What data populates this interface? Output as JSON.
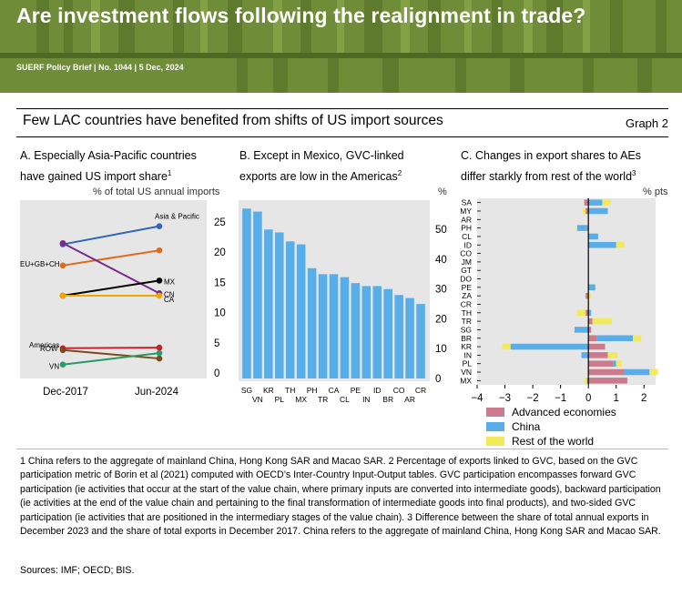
{
  "header": {
    "title": "Are investment flows following the realignment in trade?",
    "subtitle": "SUERF Policy Brief | No. 1044 | 5 Dec, 2024"
  },
  "graph": {
    "title": "Few LAC countries have benefited from shifts of US import sources",
    "number": "Graph 2"
  },
  "panelA": {
    "title_line1": "A. Especially Asia-Pacific countries",
    "title_line2": "have gained US import share",
    "title_sup": "1",
    "unit": "% of total US annual imports"
  },
  "panelB": {
    "title_line1": "B. Except in Mexico, GVC-linked",
    "title_line2": "exports are low in the Americas",
    "title_sup": "2",
    "unit": "%"
  },
  "panelC": {
    "title_line1": "C. Changes in export shares to AEs",
    "title_line2": "differ starkly from rest of the world",
    "title_sup": "3",
    "unit": "% pts"
  },
  "colors": {
    "banner": "#6f8c38",
    "plot_bg": "#e6e6e6",
    "bar_blue": "#5aaee8",
    "advanced": "#cc7a8e",
    "china": "#5aaee8",
    "rest": "#f2ea5c"
  },
  "chart_data": [
    {
      "type": "line",
      "x": [
        "Dec-2017",
        "Jun-2024"
      ],
      "ylim": [
        0,
        25
      ],
      "yticks": [
        0,
        5,
        10,
        15,
        20,
        25
      ],
      "series": [
        {
          "name": "Asia & Pacific",
          "values": [
            21.3,
            24.3
          ],
          "color": "#2e66b8"
        },
        {
          "name": "EU+GB+CH",
          "values": [
            17.8,
            20.3
          ],
          "color": "#e06a1c"
        },
        {
          "name": "CN",
          "values": [
            21.5,
            13.2
          ],
          "color": "#7a2b8e"
        },
        {
          "name": "MX",
          "values": [
            12.8,
            15.3
          ],
          "color": "#000000"
        },
        {
          "name": "CA",
          "values": [
            12.8,
            12.8
          ],
          "color": "#f0a800"
        },
        {
          "name": "Americas",
          "values": [
            4.1,
            4.2
          ],
          "color": "#c9202a"
        },
        {
          "name": "ROW",
          "values": [
            3.8,
            2.4
          ],
          "color": "#7a4a1c"
        },
        {
          "name": "VN",
          "values": [
            1.4,
            3.3
          ],
          "color": "#2a9a6a"
        }
      ]
    },
    {
      "type": "bar",
      "categories": [
        "SG",
        "VN",
        "KR",
        "PL",
        "TH",
        "MX",
        "PH",
        "TR",
        "CA",
        "CL",
        "PE",
        "IN",
        "ID",
        "BR",
        "CO",
        "AR",
        "CR"
      ],
      "top_labels": [
        "SG",
        "KR",
        "TH",
        "PH",
        "CA",
        "PE",
        "ID",
        "CO",
        "CR"
      ],
      "bottom_labels": [
        "VN",
        "PL",
        "MX",
        "TR",
        "CL",
        "IN",
        "BR",
        "AR"
      ],
      "values": [
        57,
        56,
        50,
        49,
        46,
        45,
        37,
        35,
        35,
        34,
        32,
        31,
        31,
        30,
        28,
        27,
        25
      ],
      "ylim": [
        0,
        58
      ],
      "yticks": [
        0,
        10,
        20,
        30,
        40,
        50
      ]
    },
    {
      "type": "bar",
      "orientation": "horizontal-stacked",
      "categories": [
        "SA",
        "MY",
        "AR",
        "PH",
        "CL",
        "ID",
        "CO",
        "JM",
        "GT",
        "DO",
        "PE",
        "ZA",
        "CR",
        "TH",
        "TR",
        "SG",
        "BR",
        "KR",
        "IN",
        "PL",
        "VN",
        "MX"
      ],
      "xlim": [
        -4,
        3
      ],
      "xticks": [
        -4,
        -3,
        -2,
        -1,
        0,
        1,
        2
      ],
      "series": [
        {
          "name": "Advanced economies",
          "values": [
            -0.15,
            -0.1,
            0,
            -0.05,
            0,
            0,
            0,
            0,
            0,
            0,
            0,
            -0.1,
            0,
            -0.1,
            0.15,
            0.1,
            0.3,
            0.6,
            0.7,
            0.9,
            1.3,
            1.4
          ]
        },
        {
          "name": "China",
          "values": [
            0.5,
            0.7,
            0,
            -0.35,
            0.35,
            1.0,
            0,
            0,
            0,
            0,
            0.25,
            0,
            0,
            0.1,
            0.0,
            -0.5,
            1.3,
            -2.8,
            -0.25,
            0.1,
            0.9,
            -0.05
          ]
        },
        {
          "name": "Rest of the world",
          "values": [
            0.3,
            -0.1,
            0,
            -0.05,
            0,
            0.3,
            0,
            0,
            0,
            0,
            0,
            0.1,
            0.05,
            -0.3,
            0.7,
            0,
            0.3,
            -0.3,
            0.35,
            0.2,
            0.3,
            -0.1
          ]
        }
      ]
    }
  ],
  "footnotes": {
    "text": "1  China refers to the aggregate of mainland China, Hong Kong SAR and Macao SAR.   2  Percentage of exports linked to GVC, based on the GVC participation metric of Borin et al (2021) computed with OECD’s Inter-Country Input-Output tables. GVC participation encompasses forward GVC participation (ie activities that occur at the start of the value chain, where primary inputs are converted into intermediate goods), backward participation (ie activities at the end of the value chain and pertaining to the final transformation of intermediate goods into final products), and two-sided GVC participation (ie activities that are positioned in the intermediary stages of the value chain).   3  Difference between the share of total annual exports in December 2023 and the share of total exports in December 2017. China refers to the aggregate of mainland China, Hong Kong SAR and Macao SAR.",
    "sources": "Sources: IMF; OECD; BIS."
  }
}
